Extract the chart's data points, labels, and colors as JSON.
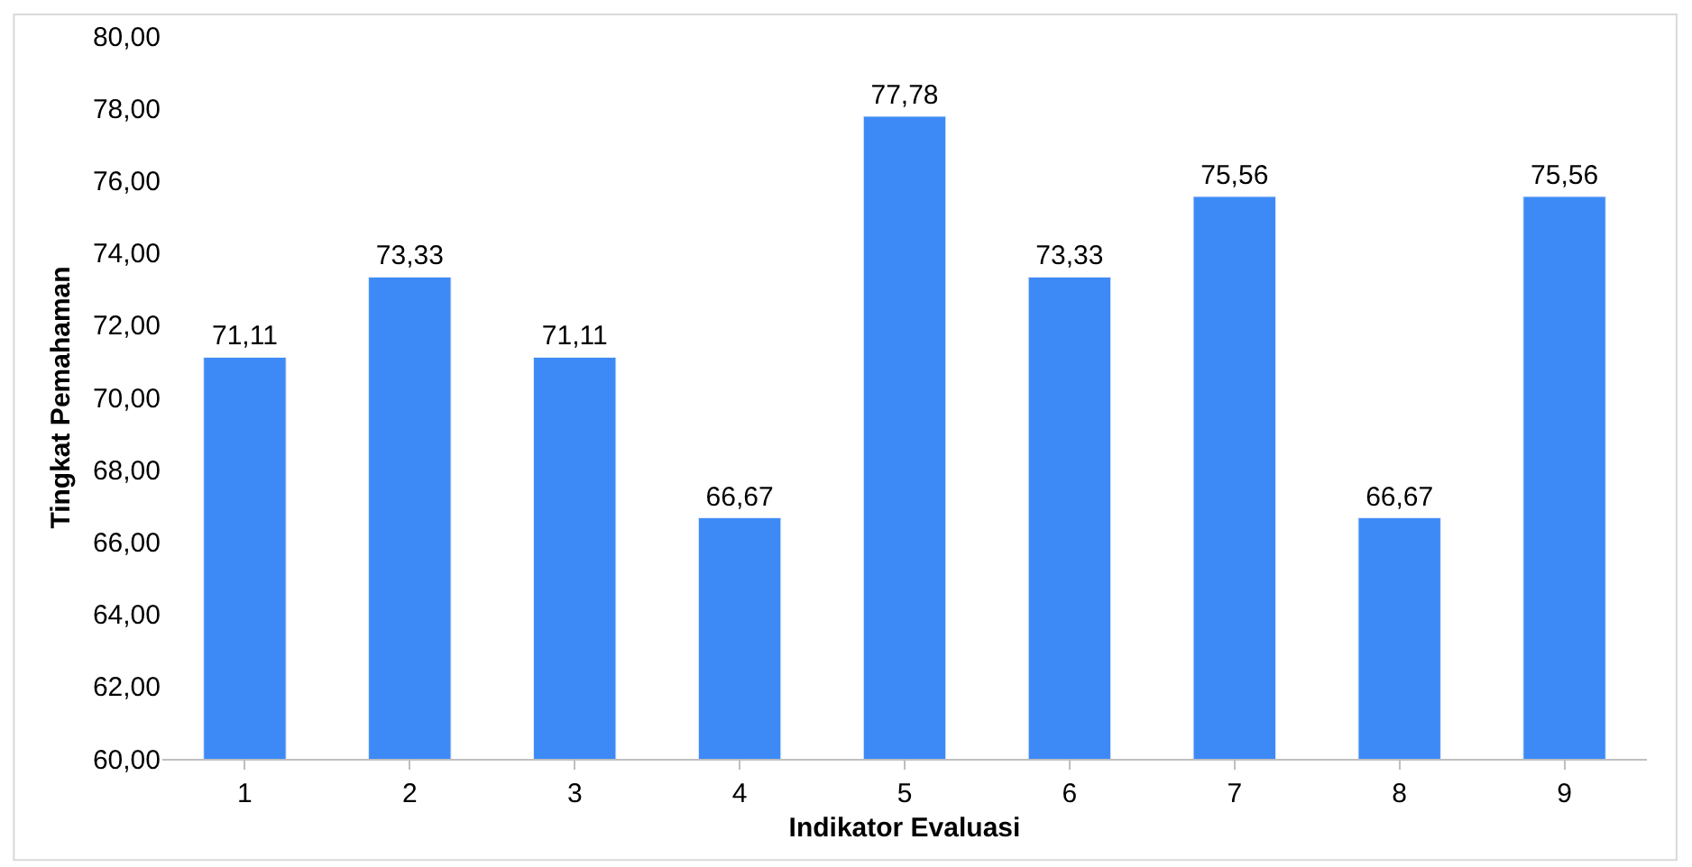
{
  "chart_data": {
    "type": "bar",
    "xlabel": "Indikator Evaluasi",
    "ylabel": "Tingkat Pemahaman",
    "categories": [
      "1",
      "2",
      "3",
      "4",
      "5",
      "6",
      "7",
      "8",
      "9"
    ],
    "values": [
      71.11,
      73.33,
      71.11,
      66.67,
      77.78,
      73.33,
      75.56,
      66.67,
      75.56
    ],
    "value_labels": [
      "71,11",
      "73,33",
      "71,11",
      "66,67",
      "77,78",
      "73,33",
      "75,56",
      "66,67",
      "75,56"
    ],
    "color": "#3d8af7",
    "ylim": [
      60,
      80
    ],
    "yticks": [
      {
        "value": 60,
        "label": "60,00"
      },
      {
        "value": 62,
        "label": "62,00"
      },
      {
        "value": 64,
        "label": "64,00"
      },
      {
        "value": 66,
        "label": "66,00"
      },
      {
        "value": 68,
        "label": "68,00"
      },
      {
        "value": 70,
        "label": "70,00"
      },
      {
        "value": 72,
        "label": "72,00"
      },
      {
        "value": 74,
        "label": "74,00"
      },
      {
        "value": 76,
        "label": "76,00"
      },
      {
        "value": 78,
        "label": "78,00"
      },
      {
        "value": 80,
        "label": "80,00"
      }
    ],
    "grid": false
  }
}
